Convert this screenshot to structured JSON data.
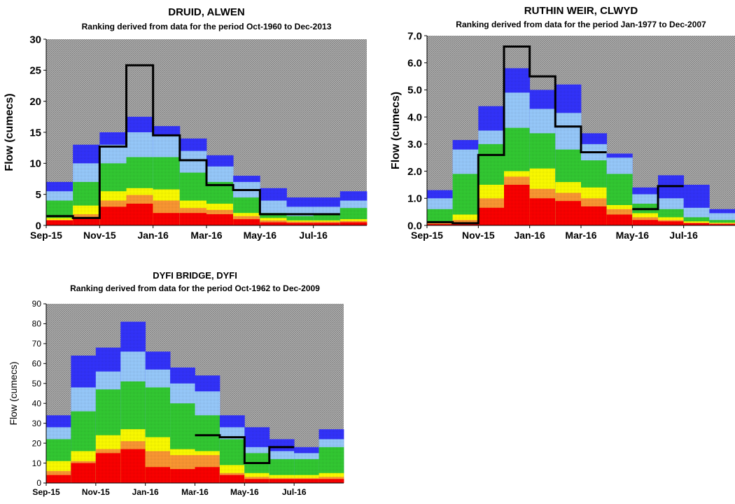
{
  "colors": {
    "red": "#ff0000",
    "orange": "#ff9933",
    "yellow": "#ffff00",
    "green": "#33cc33",
    "lightblue": "#99ccff",
    "blue": "#3333ff",
    "hatch": "#9a9a9a",
    "flowline": "#000000"
  },
  "chart_data": [
    {
      "type": "area",
      "title": "DRUID,  ALWEN",
      "subtitle": "Ranking derived from data for the period Oct-1960 to Dec-2013",
      "xlabel": "",
      "ylabel": "Flow  (cumecs)",
      "ylim": [
        0,
        30
      ],
      "yticks": [
        "0",
        "5",
        "10",
        "15",
        "20",
        "25",
        "30"
      ],
      "xtick_labels": [
        "Sep-15",
        "Nov-15",
        "Jan-16",
        "Mar-16",
        "May-16",
        "Jul-16"
      ],
      "months": [
        "Sep-15",
        "Oct-15",
        "Nov-15",
        "Dec-15",
        "Jan-16",
        "Feb-16",
        "Mar-16",
        "Apr-16",
        "May-16",
        "Jun-16",
        "Jul-16",
        "Aug-16"
      ],
      "bands": {
        "red": [
          0.8,
          1.3,
          3.0,
          3.5,
          2.0,
          2.0,
          1.8,
          1.0,
          0.5,
          0.4,
          0.4,
          0.5
        ],
        "orange": [
          0.9,
          1.8,
          4.0,
          4.9,
          4.0,
          2.8,
          2.5,
          1.5,
          0.8,
          0.6,
          0.6,
          0.7
        ],
        "yellow": [
          1.2,
          3.2,
          5.5,
          6.0,
          5.8,
          4.0,
          3.5,
          2.0,
          1.2,
          0.8,
          0.8,
          1.0
        ],
        "green": [
          4.0,
          7.0,
          10.0,
          11.0,
          11.0,
          8.5,
          7.0,
          4.5,
          2.0,
          1.5,
          1.7,
          2.8
        ],
        "lightblue": [
          5.5,
          10.0,
          13.0,
          15.0,
          14.5,
          12.0,
          9.5,
          7.0,
          4.0,
          3.0,
          3.0,
          4.0
        ],
        "blue": [
          7.0,
          13.0,
          15.0,
          17.5,
          16.0,
          14.0,
          11.3,
          8.0,
          6.0,
          4.5,
          4.5,
          5.5
        ]
      },
      "series": [
        {
          "values": [
            1.5,
            1.2,
            12.7,
            25.8,
            14.5,
            10.5,
            6.5,
            5.7,
            1.8,
            1.8,
            1.8,
            null
          ]
        }
      ]
    },
    {
      "type": "area",
      "title": "RUTHIN  WEIR, CLWYD",
      "subtitle": "Ranking derived from data for the period Jan-1977 to Dec-2007",
      "xlabel": "",
      "ylabel": "Flow  (cumecs)",
      "ylim": [
        0,
        7
      ],
      "yticks": [
        "0.0",
        "1.0",
        "2.0",
        "3.0",
        "4.0",
        "5.0",
        "6.0",
        "7.0"
      ],
      "xtick_labels": [
        "Sep-15",
        "Nov-15",
        "Jan-16",
        "Mar-16",
        "May-16",
        "Jul-16"
      ],
      "months": [
        "Sep-15",
        "Oct-15",
        "Nov-15",
        "Dec-15",
        "Jan-16",
        "Feb-16",
        "Mar-16",
        "Apr-16",
        "May-16",
        "Jun-16",
        "Jul-16",
        "Aug-16"
      ],
      "bands": {
        "red": [
          0.05,
          0.1,
          0.65,
          1.5,
          1.0,
          0.9,
          0.7,
          0.4,
          0.2,
          0.15,
          0.08,
          0.05
        ],
        "orange": [
          0.1,
          0.2,
          1.0,
          1.8,
          1.35,
          1.2,
          1.0,
          0.6,
          0.3,
          0.2,
          0.1,
          0.08
        ],
        "yellow": [
          0.15,
          0.4,
          1.5,
          2.0,
          2.1,
          1.6,
          1.4,
          0.75,
          0.45,
          0.3,
          0.15,
          0.1
        ],
        "green": [
          0.6,
          1.9,
          3.0,
          3.6,
          3.4,
          2.8,
          2.4,
          1.9,
          0.8,
          0.6,
          0.3,
          0.2
        ],
        "lightblue": [
          1.0,
          2.8,
          3.5,
          4.9,
          4.3,
          4.15,
          3.0,
          2.5,
          1.15,
          1.0,
          0.65,
          0.45
        ],
        "blue": [
          1.3,
          3.15,
          4.4,
          5.8,
          5.0,
          5.2,
          3.4,
          2.65,
          1.4,
          1.85,
          1.5,
          0.6
        ]
      },
      "series": [
        {
          "values": [
            0.12,
            0.08,
            2.6,
            6.6,
            5.5,
            3.65,
            2.7,
            null,
            0.6,
            1.45,
            null,
            null
          ]
        }
      ]
    },
    {
      "type": "area",
      "title": "DYFI BRIDGE, DYFI",
      "subtitle": "Ranking derived from data for the period Oct-1962 to Dec-2009",
      "xlabel": "",
      "ylabel": "Flow (cumecs)",
      "ylim": [
        0,
        90
      ],
      "yticks": [
        "0",
        "10",
        "20",
        "30",
        "40",
        "50",
        "60",
        "70",
        "80",
        "90"
      ],
      "xtick_labels": [
        "Sep-15",
        "Nov-15",
        "Jan-16",
        "Mar-16",
        "May-16",
        "Jul-16"
      ],
      "months": [
        "Sep-15",
        "Oct-15",
        "Nov-15",
        "Dec-15",
        "Jan-16",
        "Feb-16",
        "Mar-16",
        "Apr-16",
        "May-16",
        "Jun-16",
        "Jul-16",
        "Aug-16"
      ],
      "bands": {
        "red": [
          4,
          10,
          15,
          17,
          8,
          7,
          8,
          4,
          2,
          2,
          2,
          2
        ],
        "orange": [
          6,
          11,
          17,
          21,
          16,
          14,
          14,
          5,
          3,
          2.5,
          2.5,
          3
        ],
        "yellow": [
          11,
          16,
          24,
          27,
          23,
          17,
          16,
          9,
          5,
          4,
          4,
          5
        ],
        "green": [
          22,
          36,
          47,
          51,
          48,
          40,
          34,
          22,
          15,
          12,
          12,
          18
        ],
        "lightblue": [
          28,
          48,
          56,
          66,
          57,
          50,
          46,
          28,
          18,
          16,
          15,
          22
        ],
        "blue": [
          34,
          64,
          68,
          81,
          66,
          58,
          54,
          34,
          28,
          22,
          18,
          27
        ]
      },
      "series": [
        {
          "values": [
            null,
            null,
            null,
            null,
            null,
            null,
            24,
            23,
            10,
            18,
            null,
            null
          ]
        }
      ]
    }
  ]
}
